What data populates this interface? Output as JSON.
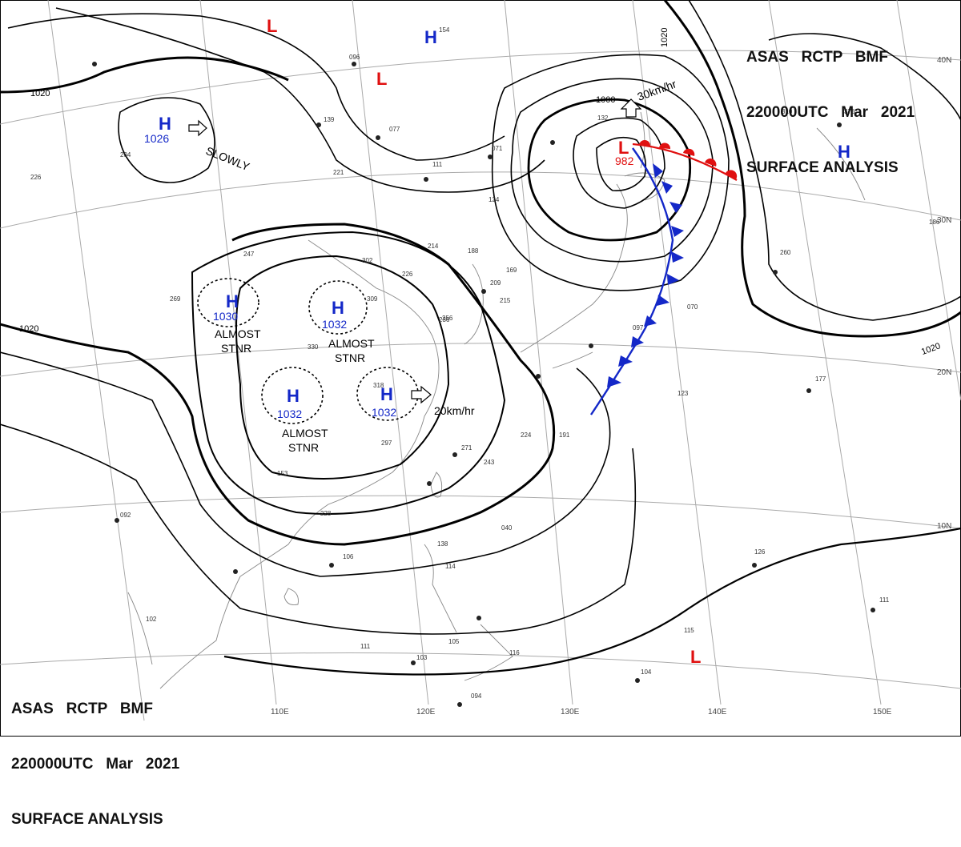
{
  "header_top": {
    "line1": "ASAS   RCTP   BMF",
    "line2": "220000UTC   Mar   2021",
    "line3": "SURFACE ANALYSIS"
  },
  "header_bottom": {
    "line1": "ASAS   RCTP   BMF",
    "line2": "220000UTC   Mar   2021",
    "line3": "SURFACE ANALYSIS"
  },
  "colors": {
    "high": "#1428c8",
    "low": "#e01010",
    "cold_front": "#1428c8",
    "warm_front": "#e01010",
    "isobar": "#000000",
    "coast": "#888888",
    "grid": "#aaaaaa"
  },
  "longitude_labels": [
    "110E",
    "120E",
    "130E",
    "140E",
    "150E"
  ],
  "latitude_labels": [
    "10N",
    "20N",
    "30N",
    "40N"
  ],
  "isobar_labels": [
    "1020",
    "1020",
    "1020",
    "1000"
  ],
  "pressure_systems": [
    {
      "type": "H",
      "value": "1026",
      "note": "SLOWLY"
    },
    {
      "type": "H",
      "value": "1030",
      "note": "ALMOST STNR"
    },
    {
      "type": "H",
      "value": "1032",
      "note": "ALMOST STNR"
    },
    {
      "type": "H",
      "value": "1032",
      "note": "ALMOST STNR"
    },
    {
      "type": "H",
      "value": "1032",
      "note": "20km/hr"
    },
    {
      "type": "L",
      "value": "982",
      "note": "30km/hr"
    },
    {
      "type": "H",
      "value": "",
      "note": ""
    },
    {
      "type": "H",
      "value": "",
      "note": ""
    },
    {
      "type": "L",
      "value": "",
      "note": ""
    },
    {
      "type": "L",
      "value": "",
      "note": ""
    },
    {
      "type": "L",
      "value": "",
      "note": ""
    }
  ],
  "motion_labels": {
    "slowly": "SLOWLY",
    "stnr_a": "ALMOST",
    "stnr_b": "STNR",
    "speed_east": "20km/hr",
    "speed_low": "30km/hr"
  },
  "station_values": [
    "154",
    "096",
    "139",
    "221",
    "077",
    "111",
    "071",
    "124",
    "204",
    "226",
    "247",
    "269",
    "330",
    "302",
    "309",
    "226",
    "214",
    "188",
    "236",
    "215",
    "169",
    "209",
    "256",
    "318",
    "297",
    "271",
    "243",
    "224",
    "191",
    "097",
    "070",
    "123",
    "177",
    "126",
    "260",
    "310",
    "376",
    "186",
    "132",
    "153",
    "228",
    "106",
    "138",
    "114",
    "103",
    "105",
    "111",
    "116",
    "094",
    "104",
    "115",
    "111",
    "092",
    "102",
    "040"
  ]
}
